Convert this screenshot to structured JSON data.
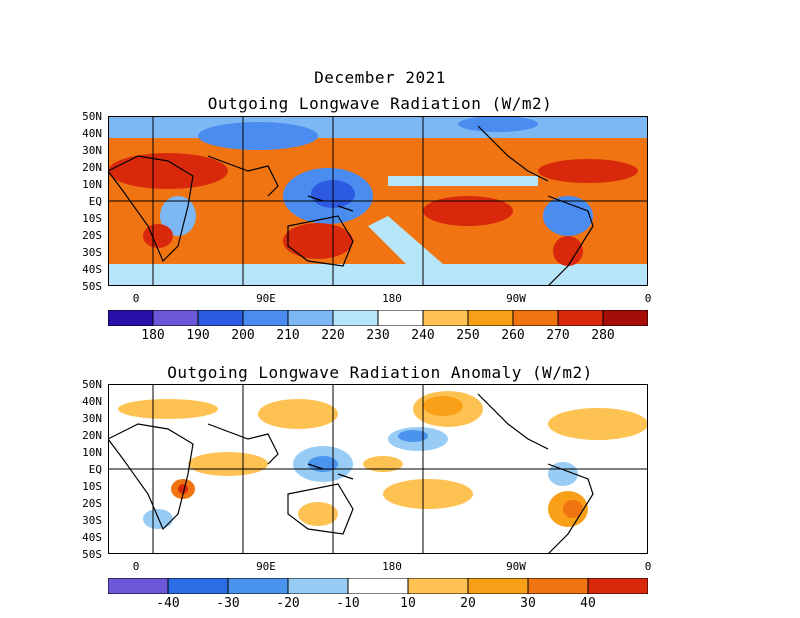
{
  "header": {
    "month": "December 2021",
    "title1": "Outgoing Longwave Radiation (W/m2)",
    "title2": "Outgoing Longwave Radiation Anomaly (W/m2)"
  },
  "lat_labels": [
    "50N",
    "40N",
    "30N",
    "20N",
    "10N",
    "EQ",
    "10S",
    "20S",
    "30S",
    "40S",
    "50S"
  ],
  "lon_labels": [
    "0",
    "90E",
    "180",
    "90W",
    "0"
  ],
  "colorbar1": {
    "labels": [
      "180",
      "190",
      "200",
      "210",
      "220",
      "230",
      "240",
      "250",
      "260",
      "270",
      "280"
    ],
    "colors": [
      "#2a10a8",
      "#6a58d8",
      "#2c5ae0",
      "#4a8cf0",
      "#7db8f5",
      "#b7e6fa",
      "#ffffff",
      "#fdc252",
      "#f9a018",
      "#f07512",
      "#d8290c",
      "#a40d08"
    ]
  },
  "colorbar2": {
    "labels": [
      "-40",
      "-30",
      "-20",
      "-10",
      "10",
      "20",
      "30",
      "40"
    ],
    "colors": [
      "#6a58d8",
      "#2c6ee6",
      "#4a94ee",
      "#98ccf5",
      "#ffffff",
      "#fdc252",
      "#f9a018",
      "#f07512",
      "#d8290c"
    ]
  }
}
